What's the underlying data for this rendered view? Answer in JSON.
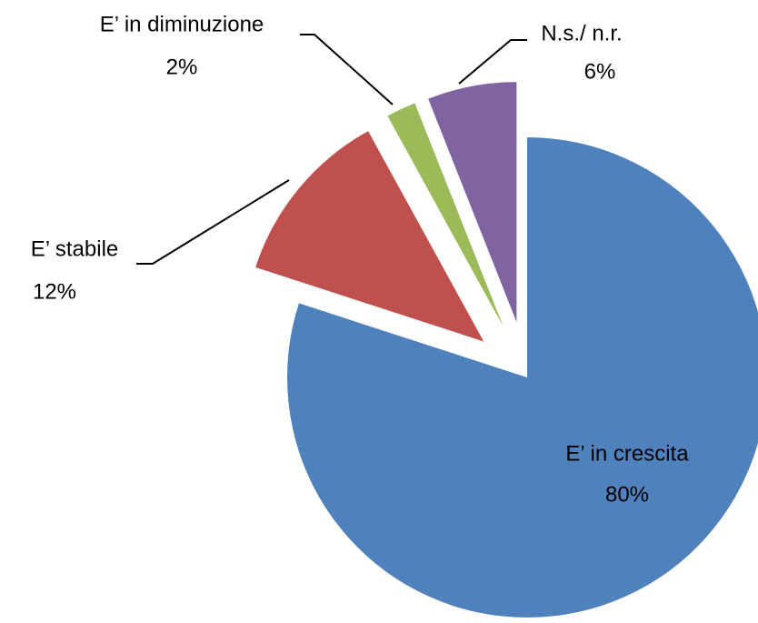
{
  "chart_data": {
    "type": "pie",
    "categories": [
      "E’ in crescita",
      "E’ stabile",
      "E’ in diminuzione",
      "N.s./ n.r."
    ],
    "values": [
      80,
      12,
      2,
      6
    ],
    "value_labels": [
      "80%",
      "12%",
      "2%",
      "6%"
    ],
    "colors": [
      "#4f81bd",
      "#c0504d",
      "#9bbb59",
      "#8064a2"
    ]
  }
}
